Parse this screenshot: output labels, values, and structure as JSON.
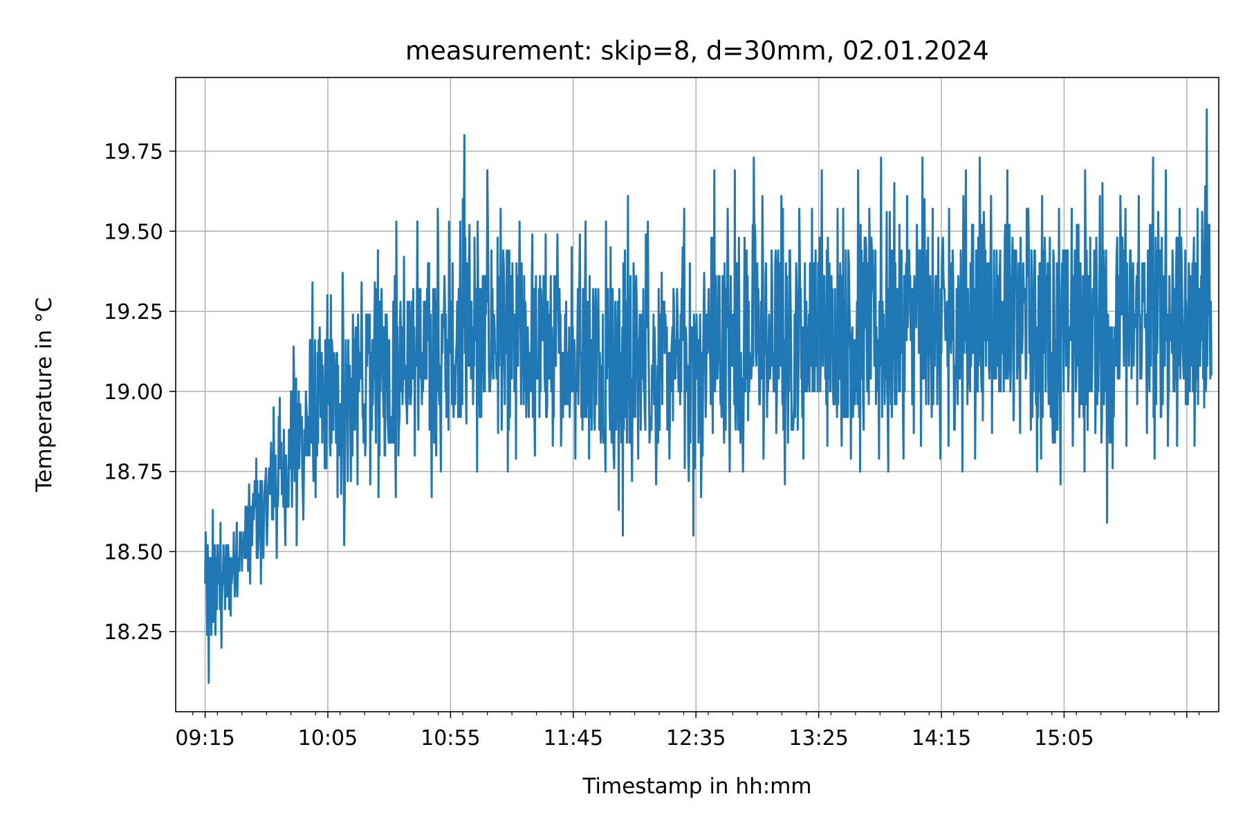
{
  "chart_data": {
    "type": "line",
    "title": "measurement: skip=8, d=30mm, 02.01.2024",
    "xlabel": "Timestamp in hh:mm",
    "ylabel": "Temperature in °C",
    "x_tick_labels": [
      "09:15",
      "10:05",
      "10:55",
      "11:45",
      "12:35",
      "13:25",
      "14:15",
      "15:05"
    ],
    "y_tick_labels": [
      "18.25",
      "18.50",
      "18.75",
      "19.00",
      "19.25",
      "19.50",
      "19.75"
    ],
    "y_ticks": [
      18.25,
      18.5,
      18.75,
      19.0,
      19.25,
      19.5,
      19.75
    ],
    "xlim": [
      "09:15",
      "16:10"
    ],
    "ylim": [
      18.0,
      19.98
    ],
    "grid": true,
    "series": [
      {
        "color": "#1f77b4",
        "x": [
          "09:15",
          "09:20",
          "09:25",
          "09:30",
          "09:35",
          "09:40",
          "09:45",
          "09:50",
          "09:55",
          "10:00",
          "10:05",
          "10:10",
          "10:15",
          "10:20",
          "10:25",
          "10:30",
          "10:35",
          "10:40",
          "10:45",
          "10:50",
          "10:55",
          "11:00",
          "11:05",
          "11:10",
          "11:15",
          "11:20",
          "11:25",
          "11:30",
          "11:35",
          "11:40",
          "11:45",
          "11:50",
          "11:55",
          "12:00",
          "12:05",
          "12:10",
          "12:15",
          "12:20",
          "12:25",
          "12:30",
          "12:35",
          "12:40",
          "12:45",
          "12:50",
          "12:55",
          "13:00",
          "13:05",
          "13:10",
          "13:15",
          "13:20",
          "13:25",
          "13:30",
          "13:35",
          "13:40",
          "13:45",
          "13:50",
          "13:55",
          "14:00",
          "14:05",
          "14:10",
          "14:15",
          "14:20",
          "14:25",
          "14:30",
          "14:35",
          "14:40",
          "14:45",
          "14:50",
          "14:55",
          "15:00",
          "15:05",
          "15:10",
          "15:15",
          "15:20",
          "15:25",
          "15:30",
          "15:35",
          "15:40",
          "15:45",
          "15:50",
          "15:55",
          "16:00",
          "16:05"
        ],
        "y": [
          18.35,
          18.4,
          18.45,
          18.52,
          18.6,
          18.66,
          18.74,
          18.82,
          18.86,
          18.9,
          18.94,
          18.98,
          19.01,
          19.03,
          19.05,
          19.06,
          19.08,
          19.09,
          19.1,
          19.11,
          19.12,
          19.13,
          19.14,
          19.14,
          19.14,
          19.13,
          19.13,
          19.12,
          19.12,
          19.12,
          19.11,
          19.1,
          19.1,
          19.09,
          19.09,
          19.08,
          19.08,
          19.08,
          19.08,
          19.09,
          19.09,
          19.1,
          19.1,
          19.11,
          19.12,
          19.13,
          19.13,
          19.14,
          19.15,
          19.16,
          19.16,
          19.17,
          19.18,
          19.18,
          19.19,
          19.19,
          19.2,
          19.2,
          19.21,
          19.21,
          19.22,
          19.22,
          19.22,
          19.23,
          19.23,
          19.23,
          19.23,
          19.22,
          19.22,
          19.22,
          19.21,
          19.21,
          19.2,
          19.2,
          19.2,
          19.21,
          19.21,
          19.21,
          19.22,
          19.22,
          19.22,
          19.22,
          19.05
        ],
        "lower": [
          18.09,
          18.2,
          18.3,
          18.4,
          18.4,
          18.48,
          18.52,
          18.52,
          18.6,
          18.67,
          18.67,
          18.52,
          18.71,
          18.71,
          18.67,
          18.67,
          18.9,
          18.8,
          18.67,
          18.75,
          18.85,
          18.9,
          18.75,
          18.87,
          18.75,
          18.79,
          18.8,
          18.79,
          18.83,
          18.83,
          18.79,
          18.79,
          18.75,
          18.63,
          18.55,
          18.79,
          18.71,
          18.79,
          18.91,
          18.55,
          18.67,
          18.87,
          18.75,
          18.75,
          18.91,
          18.79,
          18.87,
          18.71,
          18.79,
          18.91,
          18.83,
          18.83,
          18.79,
          18.75,
          18.79,
          18.75,
          18.79,
          18.87,
          18.83,
          18.79,
          18.83,
          18.75,
          18.79,
          18.91,
          18.87,
          18.91,
          18.87,
          18.75,
          18.79,
          18.71,
          18.83,
          18.75,
          18.87,
          18.59,
          18.79,
          18.83,
          18.87,
          18.79,
          18.83,
          18.83,
          18.83,
          18.95,
          18.95
        ],
        "upper": [
          18.63,
          18.59,
          18.59,
          18.71,
          18.79,
          18.95,
          18.98,
          19.14,
          19.34,
          19.3,
          19.3,
          19.37,
          19.34,
          19.34,
          19.44,
          19.53,
          19.42,
          19.53,
          19.57,
          19.53,
          19.53,
          19.8,
          19.53,
          19.69,
          19.57,
          19.53,
          19.49,
          19.49,
          19.49,
          19.45,
          19.49,
          19.53,
          19.53,
          19.45,
          19.61,
          19.49,
          19.53,
          19.37,
          19.45,
          19.57,
          19.37,
          19.69,
          19.57,
          19.69,
          19.73,
          19.61,
          19.61,
          19.57,
          19.57,
          19.57,
          19.69,
          19.57,
          19.57,
          19.69,
          19.57,
          19.73,
          19.65,
          19.61,
          19.73,
          19.57,
          19.57,
          19.61,
          19.69,
          19.73,
          19.61,
          19.69,
          19.57,
          19.57,
          19.61,
          19.57,
          19.57,
          19.69,
          19.61,
          19.65,
          19.61,
          19.57,
          19.61,
          19.73,
          19.69,
          19.57,
          19.57,
          19.88,
          19.45
        ]
      }
    ]
  }
}
